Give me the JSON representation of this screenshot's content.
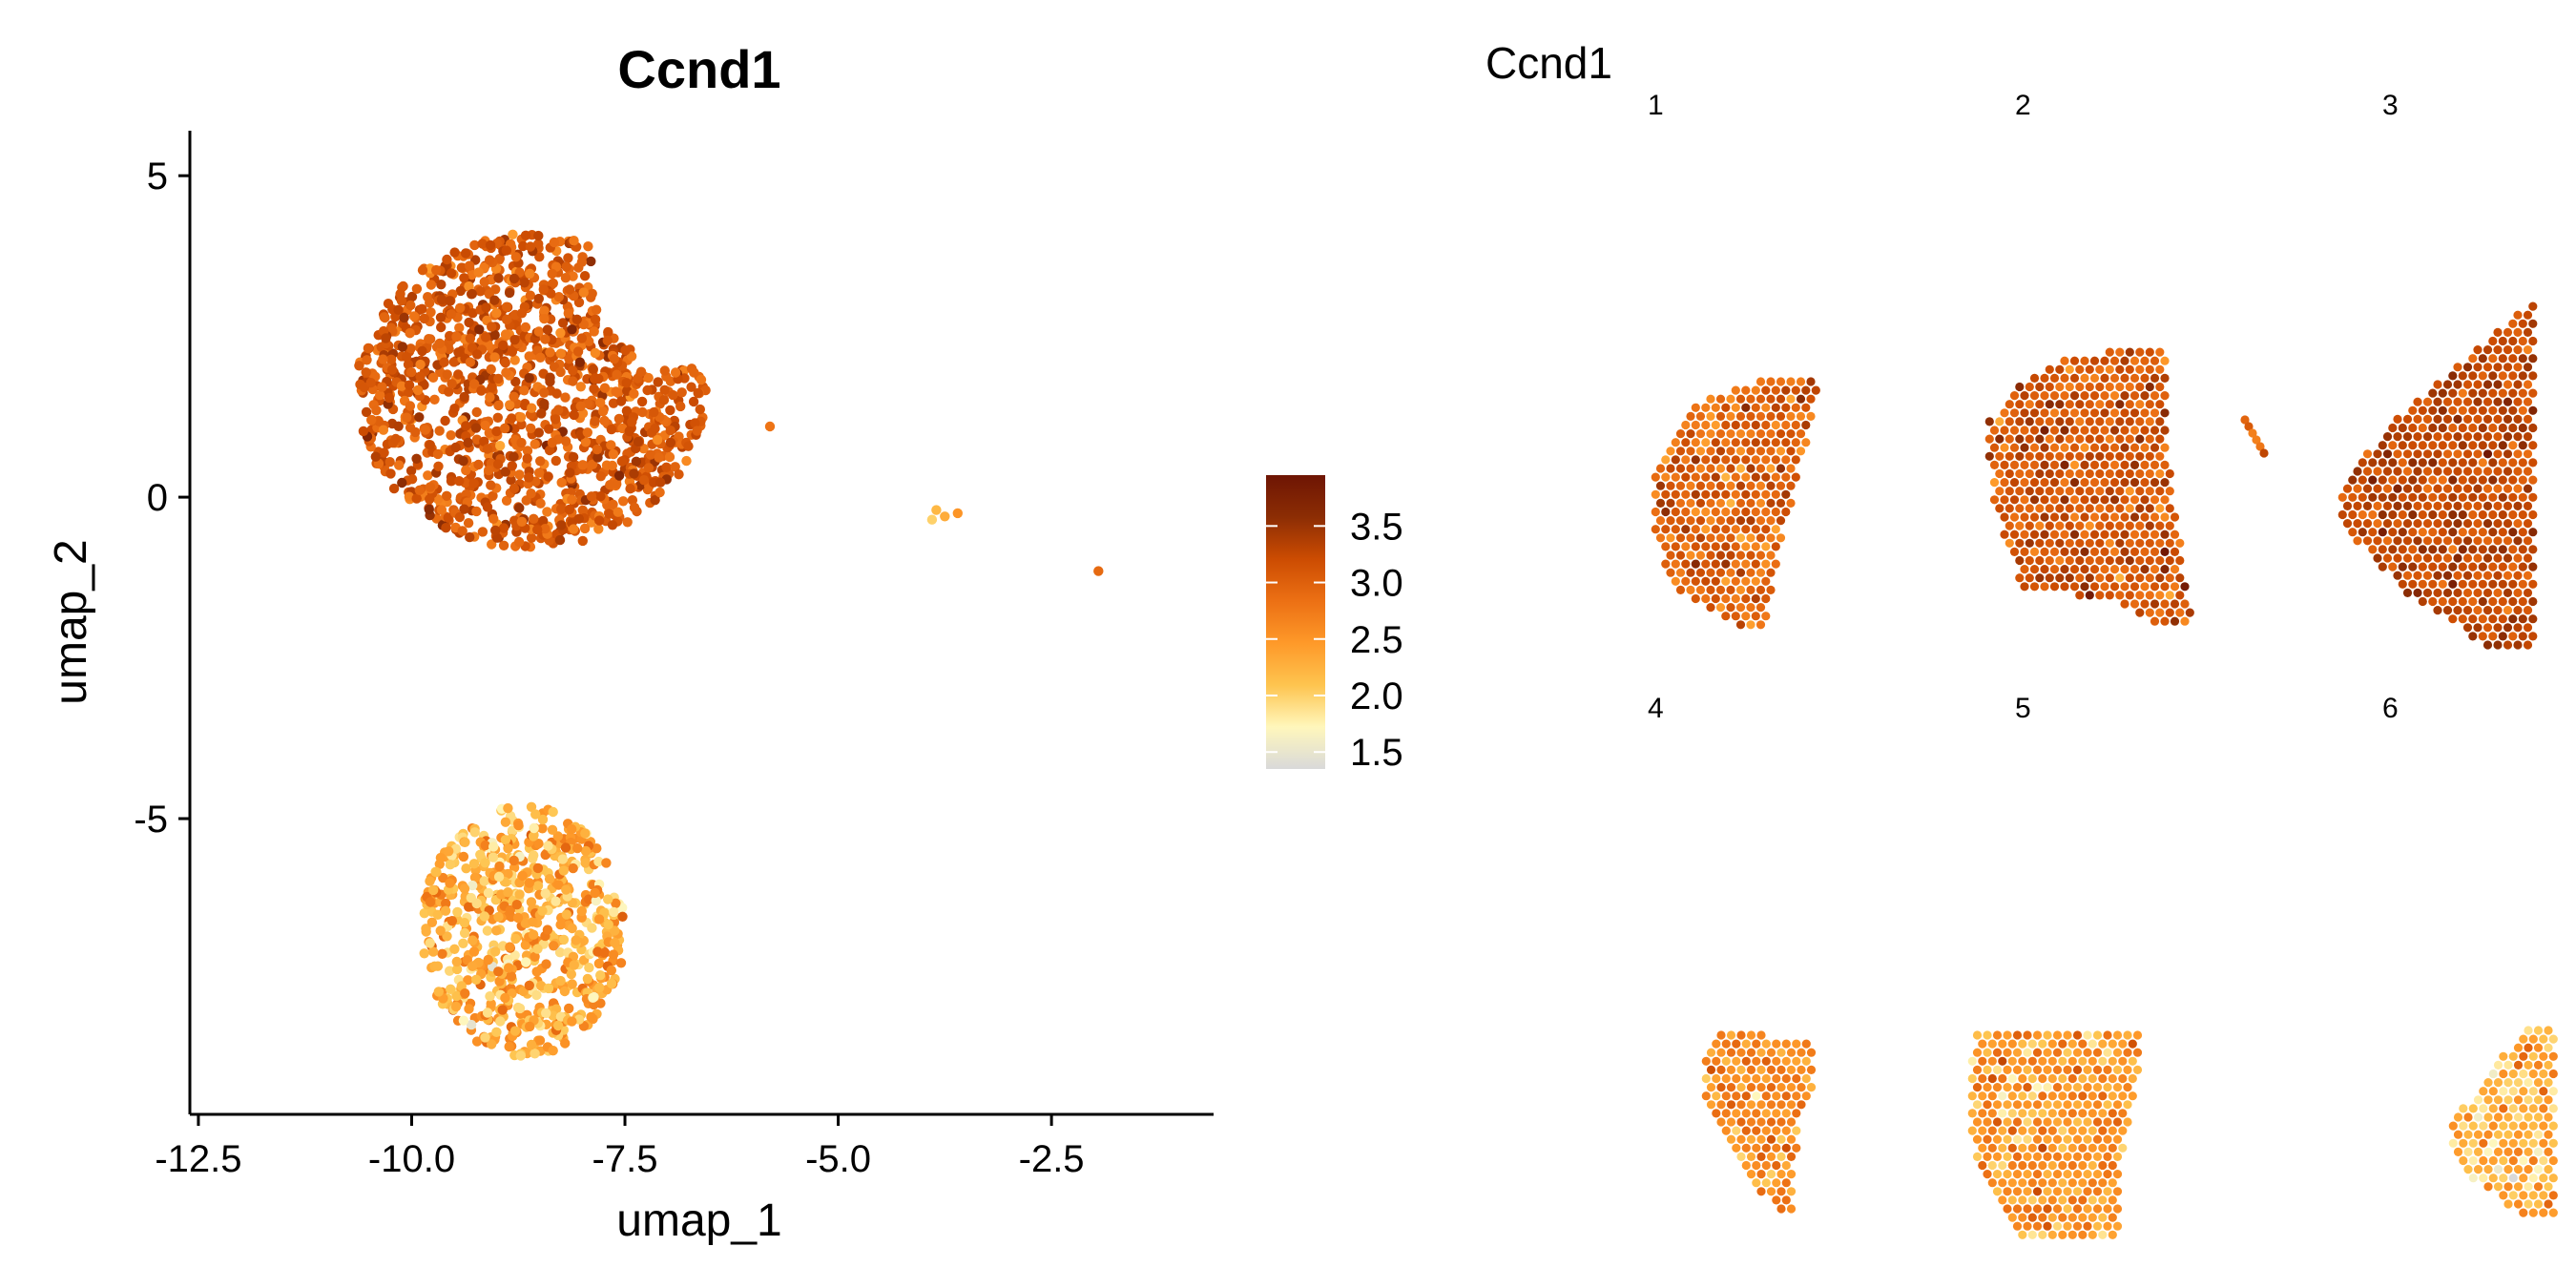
{
  "chart_data": [
    {
      "type": "scatter",
      "title": "Ccnd1",
      "xlabel": "umap_1",
      "ylabel": "umap_2",
      "xlim": [
        -12.6,
        -0.6
      ],
      "ylim": [
        -9.6,
        5.7
      ],
      "x_ticks": [
        -12.5,
        -10.0,
        -7.5,
        -5.0,
        -2.5
      ],
      "x_tick_labels": [
        "-12.5",
        "-10.0",
        "-7.5",
        "-5.0",
        "-2.5"
      ],
      "y_ticks": [
        5,
        0,
        -5
      ],
      "y_tick_labels": [
        "5",
        "0",
        "-5"
      ],
      "grid": false,
      "clusters": [
        {
          "cx": -8.6,
          "cy": 1.65,
          "rx": 2.05,
          "ry": 2.45,
          "n": 1300,
          "value_mean": 3.05,
          "value_sd": 0.22,
          "trim": "upper-right"
        },
        {
          "cx": -8.7,
          "cy": -6.75,
          "rx": 1.2,
          "ry": 1.95,
          "n": 680,
          "value_mean": 2.3,
          "value_sd": 0.3,
          "trim": "none"
        }
      ],
      "points": [
        {
          "x": -5.8,
          "y": 1.1,
          "value": 2.8
        },
        {
          "x": -3.85,
          "y": -0.2,
          "value": 2.2
        },
        {
          "x": -3.75,
          "y": -0.3,
          "value": 2.3
        },
        {
          "x": -3.6,
          "y": -0.25,
          "value": 2.5
        },
        {
          "x": -3.9,
          "y": -0.35,
          "value": 2.0
        },
        {
          "x": -1.95,
          "y": -1.15,
          "value": 2.9
        }
      ],
      "colorbar": {
        "ticks": [
          3.5,
          3.0,
          2.5,
          2.0,
          1.5
        ],
        "tick_labels": [
          "3.5",
          "3.0",
          "2.5",
          "2.0",
          "1.5"
        ],
        "range": [
          1.35,
          3.95
        ],
        "colors": [
          "#d9d9d9",
          "#fff7bc",
          "#fec44f",
          "#fe9929",
          "#ec7014",
          "#cc4c02",
          "#8c2d04",
          "#6e1504"
        ]
      }
    },
    {
      "type": "scatter",
      "title": "Ccnd1",
      "legend": "none",
      "panel_labels": [
        "1",
        "2",
        "3",
        "4",
        "5",
        "6"
      ],
      "panels": [
        {
          "label": "1",
          "mean": 2.95,
          "sd": 0.28
        },
        {
          "label": "2",
          "mean": 3.1,
          "sd": 0.25
        },
        {
          "label": "3",
          "mean": 3.25,
          "sd": 0.22
        },
        {
          "label": "4",
          "mean": 2.55,
          "sd": 0.3
        },
        {
          "label": "5",
          "mean": 2.45,
          "sd": 0.3
        },
        {
          "label": "6",
          "mean": 2.2,
          "sd": 0.32
        }
      ]
    }
  ]
}
